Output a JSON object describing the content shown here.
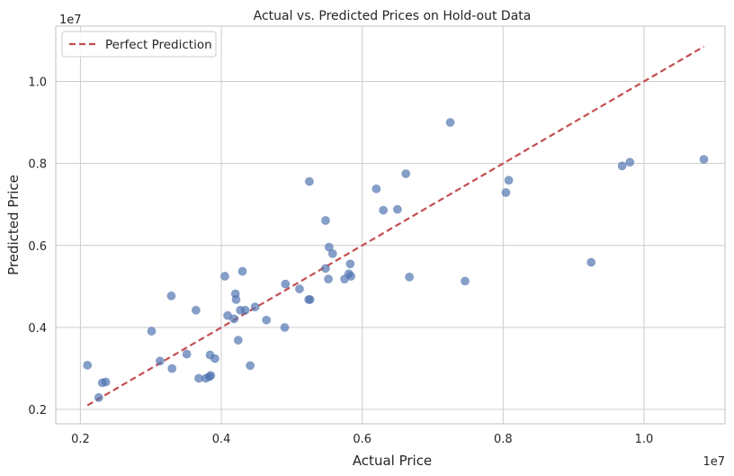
{
  "chart_data": {
    "type": "scatter",
    "title": "Actual vs. Predicted Prices on Hold-out Data",
    "xlabel": "Actual Price",
    "ylabel": "Predicted Price",
    "x_offset_label": "1e7",
    "y_offset_label": "1e7",
    "xlim": [
      1650000,
      11150000
    ],
    "ylim": [
      1650000,
      11350000
    ],
    "x_ticks": [
      2000000,
      4000000,
      6000000,
      8000000,
      10000000
    ],
    "x_tick_labels": [
      "0.2",
      "0.4",
      "0.6",
      "0.8",
      "1.0"
    ],
    "y_ticks": [
      2000000,
      4000000,
      6000000,
      8000000,
      10000000
    ],
    "y_tick_labels": [
      "0.2",
      "0.4",
      "0.6",
      "0.8",
      "1.0"
    ],
    "grid": true,
    "legend": {
      "position": "top-left",
      "entries": [
        "Perfect Prediction"
      ]
    },
    "colors": {
      "points": "#4c72b0",
      "line": "#c44e52"
    },
    "reference_line": {
      "name": "Perfect Prediction",
      "x": [
        2100000,
        10850000
      ],
      "y": [
        2100000,
        10850000
      ]
    },
    "series": [
      {
        "x": [
          2100000,
          2260000,
          2310000,
          2360000,
          3010000,
          3130000,
          3300000,
          3290000,
          3510000,
          3640000,
          3680000,
          3780000,
          3840000,
          3850000,
          3910000,
          3830000,
          4050000,
          4090000,
          4180000,
          4200000,
          4210000,
          4240000,
          4270000,
          4300000,
          4340000,
          4410000,
          4480000,
          4640000,
          4900000,
          4910000,
          5110000,
          5240000,
          5260000,
          5250000,
          5480000,
          5480000,
          5520000,
          5530000,
          5580000,
          5750000,
          5810000,
          5830000,
          5840000,
          6200000,
          6300000,
          6500000,
          6620000,
          6670000,
          7250000,
          7460000,
          8040000,
          8080000,
          9250000,
          9690000,
          9800000,
          10850000
        ],
        "y": [
          3080000,
          2290000,
          2650000,
          2670000,
          3910000,
          3180000,
          3000000,
          4770000,
          3350000,
          4420000,
          2760000,
          2760000,
          3330000,
          2830000,
          3240000,
          2800000,
          5250000,
          4290000,
          4210000,
          4820000,
          4680000,
          3690000,
          4420000,
          5370000,
          4420000,
          3070000,
          4500000,
          4180000,
          4000000,
          5060000,
          4940000,
          4680000,
          4680000,
          7560000,
          6610000,
          5440000,
          5180000,
          5960000,
          5800000,
          5180000,
          5310000,
          5550000,
          5250000,
          7380000,
          6860000,
          6880000,
          7750000,
          5230000,
          9000000,
          5130000,
          7290000,
          7590000,
          5590000,
          7940000,
          8030000,
          8100000
        ]
      }
    ]
  }
}
